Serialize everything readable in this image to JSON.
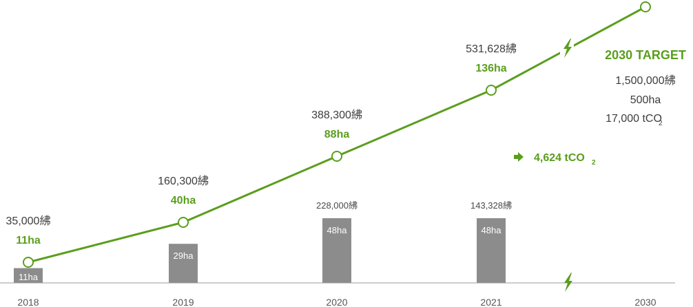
{
  "colors": {
    "line": "#5a9e1d",
    "bar": "#8c8c8c",
    "axis": "#9a9a9a"
  },
  "chart_data": {
    "type": "line",
    "categories": [
      "2018",
      "2019",
      "2020",
      "2021",
      "2030"
    ],
    "series": [
      {
        "values": [
          35000,
          160300,
          388300,
          531628,
          1500000
        ],
        "value_labels": [
          "35,000紼",
          "160,300紼",
          "388,300紼",
          "531,628紼",
          ""
        ],
        "area_labels": [
          "11ha",
          "40ha",
          "88ha",
          "136ha",
          ""
        ]
      }
    ],
    "bars": {
      "type": "bar",
      "categories": [
        "2018",
        "2019",
        "2020",
        "2021"
      ],
      "area_values": [
        11,
        29,
        48,
        48
      ],
      "area_labels": [
        "11ha",
        "29ha",
        "48ha",
        "48ha"
      ],
      "top_labels": [
        "",
        "",
        "228,000紼",
        "143,328紼"
      ]
    },
    "target": {
      "title": "2030 TARGET",
      "trees": "1,500,000紼",
      "area": "500ha",
      "co2_value": "17,000 tCO",
      "co2_sub": "2"
    },
    "annotation": {
      "value": "4,624 tCO",
      "sub": "2"
    },
    "icons": [
      "lightning-icon",
      "arrow-right-icon"
    ]
  }
}
